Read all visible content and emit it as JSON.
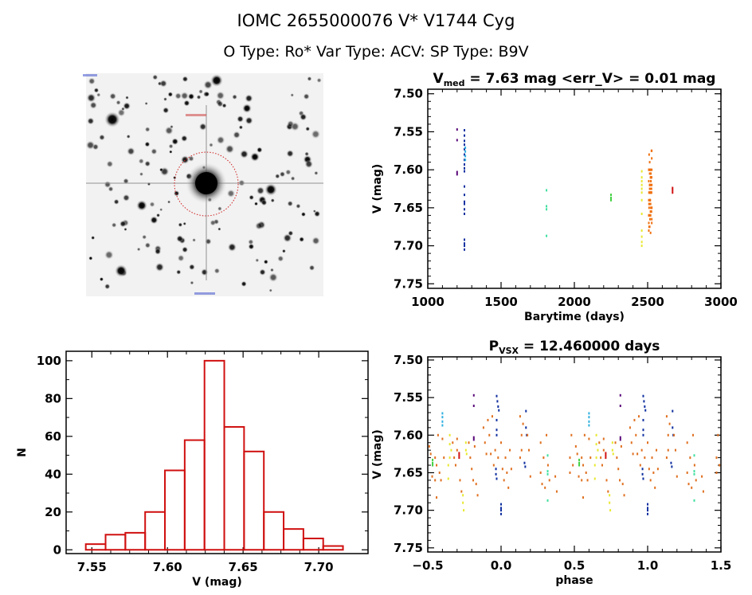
{
  "header": {
    "title": "IOMC 2655000076    V* V1744 Cyg",
    "subtitle": "O Type: Ro*  Var Type: ACV:  SP Type: B9V"
  },
  "chart_data": [
    {
      "id": "image",
      "type": "image",
      "description_label": "sky image"
    },
    {
      "id": "lightcurve",
      "type": "scatter",
      "title_main": "V",
      "title_sub": "med",
      "title_rest": " = 7.63 mag <err_V> = 0.01 mag",
      "xlabel": "Barytime (days)",
      "ylabel": "V (mag)",
      "xlim": [
        1000,
        3000
      ],
      "ylim": [
        7.494,
        7.756
      ],
      "y_inverted": true,
      "xticks": [
        1000,
        1500,
        2000,
        2500,
        3000
      ],
      "xtick_labels": [
        "1000",
        "1500",
        "2000",
        "2500",
        "3000"
      ],
      "yticks": [
        7.5,
        7.55,
        7.6,
        7.65,
        7.7,
        7.75
      ],
      "ytick_labels": [
        "7.50",
        "7.55",
        "7.60",
        "7.65",
        "7.70",
        "7.75"
      ],
      "series": [
        {
          "name": "purple",
          "color": "#5a0a7a",
          "x": [
            1200,
            1200,
            1200,
            1200
          ],
          "y": [
            7.547,
            7.561,
            7.603,
            7.606
          ]
        },
        {
          "name": "blue",
          "color": "#1030a0",
          "x": [
            1250,
            1250,
            1250,
            1250,
            1250,
            1250,
            1250,
            1250,
            1250,
            1250,
            1250,
            1250,
            1250,
            1250,
            1250,
            1250,
            1250,
            1250,
            1250,
            1250
          ],
          "y": [
            7.548,
            7.555,
            7.562,
            7.567,
            7.573,
            7.58,
            7.587,
            7.593,
            7.598,
            7.602,
            7.622,
            7.633,
            7.642,
            7.645,
            7.652,
            7.658,
            7.692,
            7.697,
            7.7,
            7.705
          ]
        },
        {
          "name": "cyan",
          "color": "#30b0e0",
          "x": [
            1256,
            1256,
            1256,
            1256
          ],
          "y": [
            7.571,
            7.576,
            7.582,
            7.587
          ]
        },
        {
          "name": "teal",
          "color": "#40e0a0",
          "x": [
            1810,
            1810,
            1810,
            1810
          ],
          "y": [
            7.627,
            7.648,
            7.652,
            7.687
          ]
        },
        {
          "name": "green",
          "color": "#40d040",
          "x": [
            2250,
            2250,
            2250
          ],
          "y": [
            7.633,
            7.637,
            7.64
          ]
        },
        {
          "name": "yellow",
          "color": "#e8e830",
          "x": [
            2460,
            2460,
            2460,
            2460,
            2460,
            2460,
            2460,
            2460,
            2460,
            2460,
            2460,
            2460
          ],
          "y": [
            7.602,
            7.61,
            7.615,
            7.62,
            7.625,
            7.63,
            7.64,
            7.658,
            7.68,
            7.688,
            7.695,
            7.7
          ]
        },
        {
          "name": "orange",
          "color": "#f07010",
          "x": [
            2508,
            2514,
            2520,
            2526,
            2510,
            2516,
            2522,
            2528,
            2508,
            2514,
            2520,
            2526,
            2510,
            2516,
            2522,
            2528,
            2508,
            2514,
            2520,
            2526,
            2510,
            2516,
            2522,
            2528,
            2508,
            2514,
            2520,
            2526,
            2510,
            2516,
            2522,
            2528,
            2508,
            2514,
            2520,
            2526,
            2510,
            2516,
            2522,
            2528,
            2508,
            2514,
            2520,
            2526,
            2510,
            2516,
            2522,
            2528,
            2508,
            2514,
            2520,
            2526,
            2510,
            2516,
            2522,
            2528,
            2508,
            2514,
            2520,
            2526,
            2510,
            2516,
            2522,
            2528,
            2518,
            2520
          ],
          "y": [
            7.615,
            7.625,
            7.655,
            7.63,
            7.66,
            7.64,
            7.6,
            7.65,
            7.66,
            7.605,
            7.63,
            7.61,
            7.63,
            7.64,
            7.605,
            7.62,
            7.66,
            7.675,
            7.61,
            7.63,
            7.645,
            7.66,
            7.615,
            7.665,
            7.68,
            7.59,
            7.61,
            7.625,
            7.58,
            7.6,
            7.625,
            7.575,
            7.64,
            7.62,
            7.63,
            7.61,
            7.645,
            7.66,
            7.63,
            7.65,
            7.67,
            7.62,
            7.645,
            7.575,
            7.63,
            7.6,
            7.62,
            7.585,
            7.6,
            7.62,
            7.655,
            7.61,
            7.65,
            7.665,
            7.63,
            7.67,
            7.6,
            7.64,
            7.66,
            7.655,
            7.675,
            7.63,
            7.65,
            7.6,
            7.64,
            7.683
          ]
        },
        {
          "name": "red",
          "color": "#d01010",
          "x": [
            2670,
            2670,
            2670
          ],
          "y": [
            7.624,
            7.627,
            7.63
          ]
        }
      ]
    },
    {
      "id": "histogram",
      "type": "bar",
      "xlabel": "V (mag)",
      "ylabel": "N",
      "xlim": [
        7.533,
        7.7326
      ],
      "ylim": [
        -2,
        105
      ],
      "bin_start": 7.546,
      "bin_width": 0.01308,
      "values": [
        3,
        8,
        9,
        20,
        42,
        58,
        100,
        65,
        52,
        20,
        11,
        6,
        2
      ],
      "bar_color": "#d01010",
      "xticks": [
        7.55,
        7.6,
        7.65,
        7.7
      ],
      "xtick_labels": [
        "7.55",
        "7.60",
        "7.65",
        "7.70"
      ],
      "yticks": [
        0,
        20,
        40,
        60,
        80,
        100
      ],
      "ytick_labels": [
        "0",
        "20",
        "40",
        "60",
        "80",
        "100"
      ]
    },
    {
      "id": "phased",
      "type": "scatter",
      "title_main": "P",
      "title_sub": "VSX",
      "title_rest": " = 12.460000 days",
      "xlabel": "phase",
      "ylabel": "V (mag)",
      "xlim": [
        -0.5,
        1.5
      ],
      "ylim": [
        7.4958,
        7.7555
      ],
      "y_inverted": true,
      "repeat_period": 1,
      "xticks": [
        -0.5,
        0.0,
        0.5,
        1.0,
        1.5
      ],
      "xtick_labels": [
        "−0.5",
        "0.0",
        "0.5",
        "1.0",
        "1.5"
      ],
      "yticks": [
        7.5,
        7.55,
        7.6,
        7.65,
        7.7,
        7.75
      ],
      "ytick_labels": [
        "7.50",
        "7.55",
        "7.60",
        "7.65",
        "7.70",
        "7.75"
      ],
      "series": [
        {
          "name": "purple",
          "color": "#5a0a7a",
          "x": [
            -0.186,
            -0.186,
            -0.186,
            -0.186
          ],
          "y": [
            7.547,
            7.561,
            7.603,
            7.606
          ]
        },
        {
          "name": "blue",
          "color": "#1030a0",
          "x": [
            -0.03,
            -0.025,
            -0.02,
            -0.015,
            -0.03,
            -0.03,
            -0.03,
            -0.035,
            -0.035,
            -0.03,
            0.0,
            0.0,
            0.0,
            0.0,
            0.17,
            0.17,
            0.175,
            0.16,
            0.165
          ],
          "y": [
            7.548,
            7.555,
            7.562,
            7.567,
            7.58,
            7.593,
            7.6,
            7.645,
            7.652,
            7.658,
            7.692,
            7.697,
            7.7,
            7.705,
            7.568,
            7.59,
            7.6,
            7.637,
            7.642
          ]
        },
        {
          "name": "cyan",
          "color": "#30b0e0",
          "x": [
            -0.4,
            -0.4,
            -0.4,
            -0.4
          ],
          "y": [
            7.571,
            7.576,
            7.582,
            7.587
          ]
        },
        {
          "name": "teal",
          "color": "#40e0a0",
          "x": [
            0.318,
            0.318,
            0.318,
            0.318
          ],
          "y": [
            7.627,
            7.648,
            7.652,
            7.687
          ]
        },
        {
          "name": "green",
          "color": "#40d040",
          "x": [
            -0.467,
            -0.467,
            -0.467
          ],
          "y": [
            7.633,
            7.637,
            7.64
          ]
        },
        {
          "name": "yellow",
          "color": "#e8e830",
          "x": [
            -0.35,
            -0.35,
            -0.34,
            -0.35,
            -0.36,
            -0.36,
            -0.24,
            -0.24,
            -0.235,
            -0.26,
            -0.26,
            -0.255
          ],
          "y": [
            7.6,
            7.612,
            7.62,
            7.63,
            7.64,
            7.658,
            7.61,
            7.62,
            7.625,
            7.68,
            7.69,
            7.7
          ]
        },
        {
          "name": "orange",
          "color": "#e07020",
          "x": [
            -0.49,
            -0.48,
            -0.47,
            -0.45,
            -0.45,
            -0.44,
            -0.43,
            -0.42,
            -0.41,
            -0.4,
            -0.39,
            -0.33,
            -0.32,
            -0.31,
            -0.3,
            -0.3,
            -0.28,
            -0.27,
            -0.22,
            -0.21,
            -0.2,
            -0.19,
            -0.18,
            -0.17,
            -0.16,
            -0.12,
            -0.11,
            -0.1,
            -0.09,
            -0.08,
            -0.07,
            -0.06,
            -0.05,
            -0.04,
            -0.02,
            0.0,
            0.01,
            0.02,
            0.03,
            0.04,
            0.05,
            0.06,
            0.07,
            0.13,
            0.13,
            0.14,
            0.14,
            0.15,
            0.18,
            0.19,
            0.2,
            0.27,
            0.27,
            0.28,
            0.29,
            0.3,
            0.31,
            0.32,
            0.33,
            0.37,
            0.38,
            0.47,
            0.47,
            0.48,
            0.49,
            -0.44
          ],
          "y": [
            7.615,
            7.625,
            7.655,
            7.63,
            7.66,
            7.64,
            7.6,
            7.65,
            7.66,
            7.605,
            7.63,
            7.61,
            7.63,
            7.64,
            7.605,
            7.62,
            7.66,
            7.675,
            7.61,
            7.63,
            7.645,
            7.66,
            7.615,
            7.665,
            7.68,
            7.59,
            7.61,
            7.625,
            7.58,
            7.6,
            7.625,
            7.575,
            7.64,
            7.62,
            7.63,
            7.61,
            7.645,
            7.66,
            7.63,
            7.65,
            7.67,
            7.62,
            7.645,
            7.575,
            7.63,
            7.6,
            7.62,
            7.585,
            7.6,
            7.62,
            7.655,
            7.61,
            7.65,
            7.665,
            7.63,
            7.67,
            7.6,
            7.64,
            7.66,
            7.655,
            7.675,
            7.63,
            7.65,
            7.6,
            7.64,
            7.683
          ]
        },
        {
          "name": "red",
          "color": "#d01010",
          "x": [
            -0.286,
            -0.286,
            -0.286
          ],
          "y": [
            7.624,
            7.627,
            7.63
          ]
        }
      ]
    }
  ]
}
